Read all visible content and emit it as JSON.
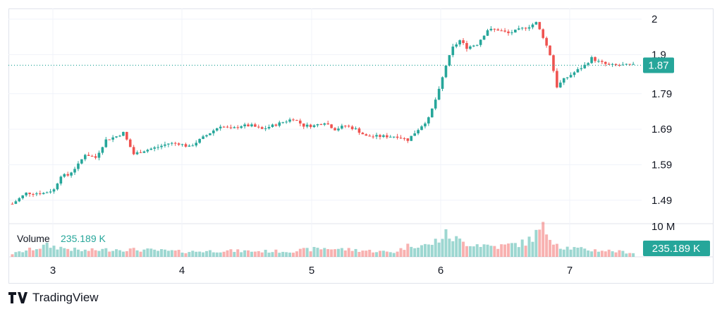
{
  "chart_data": {
    "type": "candlestick",
    "price_axis": {
      "ticks": [
        2.0,
        1.9,
        1.79,
        1.69,
        1.59,
        1.49
      ],
      "tick_labels": [
        "2",
        "1.9",
        "1.79",
        "1.69",
        "1.59",
        "1.49"
      ],
      "range": [
        1.43,
        2.03
      ]
    },
    "volume_axis": {
      "max_label": "10 M"
    },
    "time_axis": {
      "labels": [
        "3",
        "4",
        "5",
        "6",
        "7"
      ]
    },
    "last_price": {
      "value": 1.87,
      "label": "1.87"
    },
    "volume": {
      "title": "Volume",
      "value_label": "235.189 K",
      "badge_label": "235.189 K"
    },
    "colors": {
      "up": "#26a69a",
      "down": "#ef5350",
      "grid": "#f0f3fa",
      "text": "#131722"
    },
    "anchors": [
      [
        0,
        1.48
      ],
      [
        4,
        1.51
      ],
      [
        9,
        1.51
      ],
      [
        12,
        1.52
      ],
      [
        14,
        1.56
      ],
      [
        16,
        1.56
      ],
      [
        19,
        1.59
      ],
      [
        21,
        1.62
      ],
      [
        24,
        1.61
      ],
      [
        27,
        1.66
      ],
      [
        30,
        1.67
      ],
      [
        32,
        1.68
      ],
      [
        35,
        1.62
      ],
      [
        38,
        1.63
      ],
      [
        42,
        1.64
      ],
      [
        45,
        1.65
      ],
      [
        48,
        1.65
      ],
      [
        51,
        1.64
      ],
      [
        54,
        1.66
      ],
      [
        57,
        1.68
      ],
      [
        60,
        1.7
      ],
      [
        63,
        1.69
      ],
      [
        66,
        1.7
      ],
      [
        69,
        1.7
      ],
      [
        72,
        1.69
      ],
      [
        75,
        1.7
      ],
      [
        78,
        1.71
      ],
      [
        81,
        1.72
      ],
      [
        84,
        1.7
      ],
      [
        87,
        1.7
      ],
      [
        90,
        1.71
      ],
      [
        93,
        1.69
      ],
      [
        96,
        1.7
      ],
      [
        99,
        1.69
      ],
      [
        102,
        1.67
      ],
      [
        105,
        1.67
      ],
      [
        108,
        1.67
      ],
      [
        111,
        1.67
      ],
      [
        114,
        1.66
      ],
      [
        117,
        1.69
      ],
      [
        120,
        1.72
      ],
      [
        123,
        1.8
      ],
      [
        125,
        1.87
      ],
      [
        127,
        1.92
      ],
      [
        129,
        1.94
      ],
      [
        131,
        1.92
      ],
      [
        134,
        1.93
      ],
      [
        137,
        1.97
      ],
      [
        140,
        1.97
      ],
      [
        143,
        1.96
      ],
      [
        146,
        1.97
      ],
      [
        149,
        1.98
      ],
      [
        151,
        1.99
      ],
      [
        153,
        1.95
      ],
      [
        155,
        1.9
      ],
      [
        157,
        1.81
      ],
      [
        159,
        1.83
      ],
      [
        162,
        1.85
      ],
      [
        165,
        1.87
      ],
      [
        167,
        1.89
      ],
      [
        169,
        1.88
      ],
      [
        172,
        1.87
      ],
      [
        175,
        1.87
      ],
      [
        178,
        1.87
      ],
      [
        179,
        1.87
      ]
    ],
    "volume_anchors": [
      [
        0,
        0.6
      ],
      [
        10,
        2.2
      ],
      [
        20,
        1.2
      ],
      [
        30,
        1.5
      ],
      [
        40,
        1.3
      ],
      [
        50,
        1.0
      ],
      [
        60,
        1.2
      ],
      [
        70,
        1.1
      ],
      [
        80,
        1.1
      ],
      [
        90,
        1.7
      ],
      [
        100,
        1.3
      ],
      [
        110,
        0.9
      ],
      [
        115,
        2.4
      ],
      [
        120,
        2.2
      ],
      [
        125,
        4.3
      ],
      [
        130,
        2.8
      ],
      [
        140,
        2.0
      ],
      [
        148,
        2.8
      ],
      [
        153,
        5.5
      ],
      [
        158,
        2.0
      ],
      [
        165,
        1.4
      ],
      [
        172,
        1.2
      ],
      [
        179,
        0.8
      ]
    ]
  }
}
